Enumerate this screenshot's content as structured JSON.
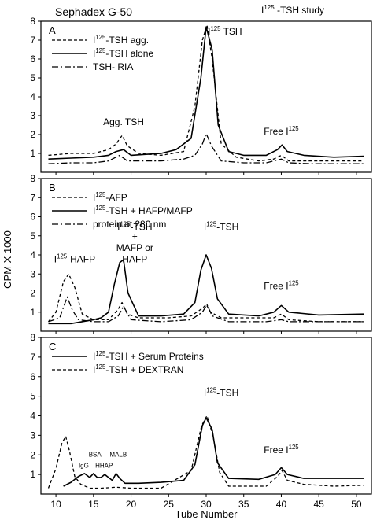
{
  "header": {
    "left_title": "Sephadex G-50",
    "right_title_prefix": "I",
    "right_title_sup": "125",
    "right_title_suffix": " -TSH study"
  },
  "axis": {
    "ylabel": "CPM X 1000",
    "xlabel": "Tube Number",
    "x_ticks": [
      10,
      15,
      20,
      25,
      30,
      35,
      40,
      45,
      50
    ]
  },
  "chart_data": [
    {
      "type": "line",
      "panel": "A",
      "xlim": [
        8,
        52
      ],
      "ylim": [
        0,
        8
      ],
      "y_ticks": [
        1,
        2,
        3,
        4,
        5,
        6,
        7,
        8
      ],
      "legend": [
        {
          "pre": "I",
          "sup": "125",
          "post": "-TSH agg.",
          "style": "dashed"
        },
        {
          "pre": "I",
          "sup": "125",
          "post": "-TSH alone",
          "style": "solid"
        },
        {
          "pre": "",
          "sup": "",
          "post": "TSH- RIA",
          "style": "dashdot"
        }
      ],
      "annotations": [
        {
          "pre": "Agg. TSH",
          "sup": "",
          "post": "",
          "x": 19,
          "y": 2.5
        },
        {
          "pre": "I",
          "sup": "125",
          "post": " TSH",
          "x": 32.5,
          "y": 7.3
        },
        {
          "pre": "Free I",
          "sup": "125",
          "post": "",
          "x": 40,
          "y": 2.0
        }
      ],
      "series": [
        {
          "style": "dashed",
          "x": [
            9,
            12,
            15,
            17,
            18,
            18.8,
            19.5,
            21,
            24,
            27,
            28.5,
            29.5,
            30.1,
            30.8,
            32,
            34,
            37,
            39,
            40,
            41,
            44,
            48,
            51
          ],
          "y": [
            0.9,
            1.0,
            1.0,
            1.2,
            1.5,
            1.95,
            1.4,
            1.0,
            0.9,
            1.1,
            3.5,
            7.0,
            7.8,
            6.0,
            1.5,
            0.8,
            0.6,
            0.7,
            0.9,
            0.6,
            0.6,
            0.6,
            0.6
          ]
        },
        {
          "style": "solid",
          "x": [
            9,
            12,
            15,
            17,
            18,
            19,
            20,
            22,
            24,
            26,
            28,
            29.3,
            30,
            30.8,
            31.6,
            33,
            35,
            38,
            39.5,
            40.1,
            40.8,
            43,
            47,
            51
          ],
          "y": [
            0.7,
            0.75,
            0.8,
            0.9,
            1.1,
            1.2,
            0.9,
            0.95,
            1.0,
            1.2,
            1.8,
            5.0,
            7.7,
            6.5,
            2.5,
            1.1,
            0.9,
            0.9,
            1.2,
            1.45,
            1.1,
            0.9,
            0.8,
            0.85
          ]
        },
        {
          "style": "dashdot",
          "x": [
            9,
            12,
            15,
            17,
            18.5,
            19.5,
            21,
            24,
            27,
            28.5,
            29.5,
            30,
            30.7,
            32,
            35,
            38,
            40,
            41,
            44,
            48,
            51
          ],
          "y": [
            0.45,
            0.5,
            0.5,
            0.6,
            0.9,
            0.6,
            0.6,
            0.6,
            0.7,
            0.9,
            1.5,
            2.05,
            1.4,
            0.6,
            0.5,
            0.5,
            0.7,
            0.5,
            0.45,
            0.45,
            0.45
          ]
        }
      ]
    },
    {
      "type": "line",
      "panel": "B",
      "xlim": [
        8,
        52
      ],
      "ylim": [
        0,
        8
      ],
      "y_ticks": [
        1,
        2,
        3,
        4,
        5,
        6,
        7,
        8
      ],
      "legend": [
        {
          "pre": "I",
          "sup": "125",
          "post": "-AFP",
          "style": "dashed"
        },
        {
          "pre": "I",
          "sup": "125",
          "post": "-TSH + HAFP/MAFP",
          "style": "solid"
        },
        {
          "pre": "",
          "sup": "",
          "post": "protein at 280 nm",
          "style": "dashdot"
        }
      ],
      "annotations": [
        {
          "pre": "I",
          "sup": "125",
          "post": "-HAFP",
          "x": 12.5,
          "y": 3.6
        },
        {
          "pre": "I",
          "sup": "125",
          "post": "-TSH",
          "x": 20.5,
          "y": 5.3
        },
        {
          "pre": "+",
          "sup": "",
          "post": "",
          "x": 20.5,
          "y": 4.8
        },
        {
          "pre": "MAFP or",
          "sup": "",
          "post": "",
          "x": 20.5,
          "y": 4.2
        },
        {
          "pre": "HAFP",
          "sup": "",
          "post": "",
          "x": 20.5,
          "y": 3.6
        },
        {
          "pre": "I",
          "sup": "125",
          "post": "-TSH",
          "x": 32,
          "y": 5.3
        },
        {
          "pre": "Free I",
          "sup": "125",
          "post": "",
          "x": 40,
          "y": 2.2
        }
      ],
      "series": [
        {
          "style": "dashed",
          "x": [
            9,
            10,
            11,
            11.7,
            12.5,
            13.5,
            15,
            17,
            18.2,
            18.8,
            19.5,
            21,
            25,
            28,
            29.5,
            30,
            30.6,
            32,
            35,
            39,
            40,
            41,
            45,
            51
          ],
          "y": [
            0.5,
            1.0,
            2.6,
            3.0,
            2.3,
            0.9,
            0.6,
            0.6,
            1.1,
            1.5,
            0.9,
            0.7,
            0.7,
            0.8,
            1.2,
            1.4,
            1.0,
            0.7,
            0.7,
            0.7,
            0.9,
            0.6,
            0.5,
            0.5
          ]
        },
        {
          "style": "solid",
          "x": [
            9,
            12,
            15,
            16,
            17,
            17.8,
            18.5,
            19,
            19.6,
            21,
            24,
            27,
            28.5,
            29.3,
            30,
            30.7,
            31.5,
            33,
            37,
            39,
            40,
            41,
            45,
            51
          ],
          "y": [
            0.4,
            0.4,
            0.6,
            0.7,
            1.0,
            2.5,
            3.6,
            3.75,
            2.0,
            0.8,
            0.8,
            0.9,
            1.5,
            3.2,
            4.0,
            3.3,
            1.7,
            0.9,
            0.8,
            1.0,
            1.35,
            1.0,
            0.85,
            0.9
          ]
        },
        {
          "style": "dashdot",
          "x": [
            9,
            10.5,
            11.5,
            12.2,
            13,
            15,
            17,
            18.3,
            19,
            20,
            24,
            28,
            29.5,
            30.1,
            30.8,
            33,
            38,
            40,
            41,
            45,
            51
          ],
          "y": [
            0.5,
            0.7,
            1.8,
            1.1,
            0.6,
            0.5,
            0.5,
            0.8,
            1.3,
            0.6,
            0.5,
            0.6,
            1.0,
            1.4,
            0.8,
            0.5,
            0.5,
            0.6,
            0.5,
            0.5,
            0.5
          ]
        }
      ]
    },
    {
      "type": "line",
      "panel": "C",
      "xlim": [
        8,
        52
      ],
      "ylim": [
        0,
        8
      ],
      "y_ticks": [
        1,
        2,
        3,
        4,
        5,
        6,
        7,
        8
      ],
      "legend": [
        {
          "pre": "I",
          "sup": "125",
          "post": "-TSH + Serum Proteins",
          "style": "solid"
        },
        {
          "pre": "I",
          "sup": "125",
          "post": "-TSH + DEXTRAN",
          "style": "dashed"
        }
      ],
      "annotations": [
        {
          "pre": "IgG",
          "sup": "",
          "post": "",
          "x": 13.7,
          "y": 1.35,
          "small": true
        },
        {
          "pre": "BSA",
          "sup": "",
          "post": "",
          "x": 15.2,
          "y": 1.9,
          "small": true
        },
        {
          "pre": "HHAP",
          "sup": "",
          "post": "",
          "x": 16.4,
          "y": 1.35,
          "small": true
        },
        {
          "pre": "MALB",
          "sup": "",
          "post": "",
          "x": 18.3,
          "y": 1.9,
          "small": true
        },
        {
          "pre": "I",
          "sup": "125",
          "post": "-TSH",
          "x": 32,
          "y": 5.0
        },
        {
          "pre": "Free I",
          "sup": "125",
          "post": "",
          "x": 40,
          "y": 2.1
        }
      ],
      "series": [
        {
          "style": "solid",
          "x": [
            11,
            12,
            13,
            13.8,
            14.5,
            15,
            15.5,
            16,
            16.5,
            17,
            17.5,
            18,
            18.5,
            19.2,
            21,
            24,
            27,
            28.5,
            29.5,
            30,
            30.8,
            31.5,
            33,
            37,
            39.2,
            40,
            40.8,
            43,
            47,
            51
          ],
          "y": [
            0.4,
            0.6,
            0.9,
            1.05,
            0.85,
            1.05,
            0.85,
            0.85,
            1.0,
            0.85,
            0.7,
            1.05,
            0.8,
            0.55,
            0.55,
            0.6,
            0.7,
            1.5,
            3.5,
            3.9,
            3.3,
            1.6,
            0.8,
            0.75,
            1.0,
            1.35,
            1.0,
            0.8,
            0.8,
            0.8
          ]
        },
        {
          "style": "dashed",
          "x": [
            9,
            10,
            10.8,
            11.3,
            11.8,
            12.5,
            13.3,
            14.5,
            16,
            18,
            20,
            24,
            28,
            29.4,
            30.1,
            30.9,
            31.8,
            33,
            38,
            39.5,
            40.1,
            40.8,
            43,
            47,
            51
          ],
          "y": [
            0.3,
            1.3,
            2.6,
            2.95,
            2.2,
            0.9,
            0.5,
            0.3,
            0.3,
            0.35,
            0.3,
            0.3,
            1.2,
            3.5,
            4.0,
            3.0,
            1.1,
            0.4,
            0.4,
            0.9,
            1.2,
            0.7,
            0.5,
            0.4,
            0.45
          ]
        }
      ]
    }
  ]
}
